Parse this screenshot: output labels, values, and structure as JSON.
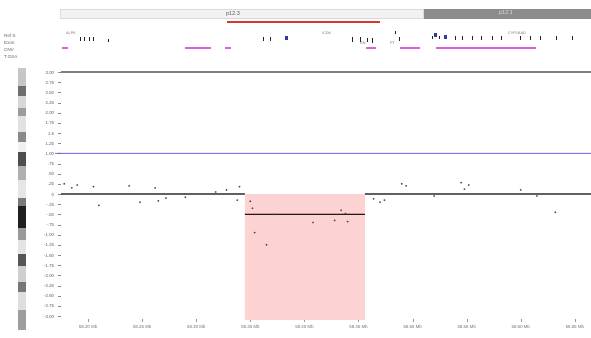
{
  "ideogram": {
    "bands": [
      {
        "label": "p12.3",
        "shade": "light",
        "color": "#f2f2f2"
      },
      {
        "label": "p12.1",
        "shade": "dark",
        "color": "#8c8c8c"
      }
    ],
    "region_marker_color": "#d9372b"
  },
  "track_labels": [
    "Ref S",
    "Exon",
    "CNV",
    "T.GSA"
  ],
  "annotation": {
    "gene_labels": [
      "ALPK",
      "ICD6",
      "RN",
      "PT",
      "CYP1BAD"
    ]
  },
  "plot": {
    "y_ticks": [
      "3.00",
      "2.75",
      "2.50",
      "2.25",
      "2.00",
      "1.75",
      "1.5",
      "1.25",
      "1.00",
      ".75",
      ".50",
      ".25",
      "0",
      "-.25",
      "-.50",
      "-.75",
      "-1.00",
      "-1.25",
      "-1.50",
      "-1.75",
      "-2.00",
      "-2.25",
      "-2.50",
      "-2.75",
      "-3.00"
    ],
    "x_ticks": [
      "58.20 Mb",
      "58.25 Mb",
      "58.30 Mb",
      "58.35 Mb",
      "58.40 Mb",
      "58.45 Mb",
      "58.50 Mb",
      "58.55 Mb",
      "58.60 Mb",
      "58.65 Mb"
    ],
    "colors": {
      "highlight": "#fdd2d2",
      "reference_line": "#5b4bd6",
      "baseline": "#000000",
      "points": "#444444"
    },
    "highlight_range_mb": [
      58.345,
      58.456
    ]
  },
  "chart_data": {
    "type": "scatter",
    "ylim": [
      -3.0,
      3.0
    ],
    "xlim_mb": [
      58.175,
      58.665
    ],
    "reference_line_y": 1.0,
    "segments": [
      {
        "x_start_mb": 58.175,
        "x_end_mb": 58.345,
        "y": 0.0
      },
      {
        "x_start_mb": 58.345,
        "x_end_mb": 58.456,
        "y": -0.5
      },
      {
        "x_start_mb": 58.456,
        "x_end_mb": 58.665,
        "y": 0.0
      }
    ],
    "points": [
      {
        "x": 58.178,
        "y": 0.25
      },
      {
        "x": 58.185,
        "y": 0.15
      },
      {
        "x": 58.19,
        "y": 0.22
      },
      {
        "x": 58.205,
        "y": 0.18
      },
      {
        "x": 58.21,
        "y": -0.28
      },
      {
        "x": 58.238,
        "y": 0.2
      },
      {
        "x": 58.248,
        "y": -0.2
      },
      {
        "x": 58.262,
        "y": 0.15
      },
      {
        "x": 58.265,
        "y": -0.17
      },
      {
        "x": 58.272,
        "y": -0.1
      },
      {
        "x": 58.29,
        "y": -0.08
      },
      {
        "x": 58.318,
        "y": 0.05
      },
      {
        "x": 58.328,
        "y": 0.1
      },
      {
        "x": 58.34,
        "y": 0.18
      },
      {
        "x": 58.338,
        "y": -0.15
      },
      {
        "x": 58.35,
        "y": -0.18
      },
      {
        "x": 58.352,
        "y": -0.35
      },
      {
        "x": 58.354,
        "y": -0.95
      },
      {
        "x": 58.365,
        "y": -1.25
      },
      {
        "x": 58.372,
        "y": -0.5
      },
      {
        "x": 58.408,
        "y": -0.7
      },
      {
        "x": 58.428,
        "y": -0.65
      },
      {
        "x": 58.434,
        "y": -0.4
      },
      {
        "x": 58.438,
        "y": -0.48
      },
      {
        "x": 58.44,
        "y": -0.68
      },
      {
        "x": 58.464,
        "y": -0.12
      },
      {
        "x": 58.47,
        "y": -0.2
      },
      {
        "x": 58.474,
        "y": -0.15
      },
      {
        "x": 58.49,
        "y": 0.25
      },
      {
        "x": 58.494,
        "y": 0.2
      },
      {
        "x": 58.52,
        "y": -0.05
      },
      {
        "x": 58.545,
        "y": 0.28
      },
      {
        "x": 58.548,
        "y": 0.12
      },
      {
        "x": 58.552,
        "y": 0.22
      },
      {
        "x": 58.6,
        "y": 0.1
      },
      {
        "x": 58.615,
        "y": -0.05
      },
      {
        "x": 58.632,
        "y": -0.45
      }
    ]
  }
}
